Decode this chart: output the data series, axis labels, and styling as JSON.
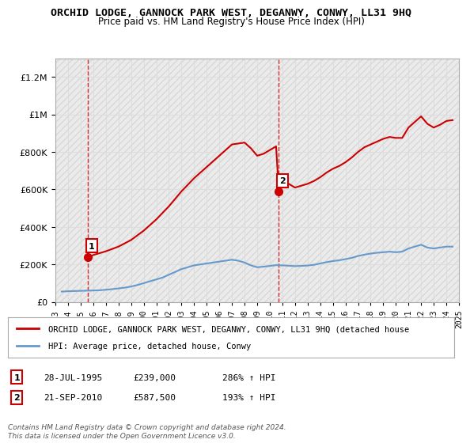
{
  "title": "ORCHID LODGE, GANNOCK PARK WEST, DEGANWY, CONWY, LL31 9HQ",
  "subtitle": "Price paid vs. HM Land Registry's House Price Index (HPI)",
  "ylim": [
    0,
    1300000
  ],
  "yticks": [
    0,
    200000,
    400000,
    600000,
    800000,
    1000000,
    1200000
  ],
  "ytick_labels": [
    "£0",
    "£200K",
    "£400K",
    "£600K",
    "£800K",
    "£1M",
    "£1.2M"
  ],
  "xmin_year": 1993,
  "xmax_year": 2025,
  "xtick_years": [
    1993,
    1994,
    1995,
    1996,
    1997,
    1998,
    1999,
    2000,
    2001,
    2002,
    2003,
    2004,
    2005,
    2006,
    2007,
    2008,
    2009,
    2010,
    2011,
    2012,
    2013,
    2014,
    2015,
    2016,
    2017,
    2018,
    2019,
    2020,
    2021,
    2022,
    2023,
    2024,
    2025
  ],
  "sale1_year": 1995.57,
  "sale1_price": 239000,
  "sale2_year": 2010.72,
  "sale2_price": 587500,
  "sale1_label": "1",
  "sale2_label": "2",
  "red_line_color": "#cc0000",
  "blue_line_color": "#6699cc",
  "sale_dot_color": "#cc0000",
  "vline_color": "#cc0000",
  "grid_color": "#dddddd",
  "hatch_color": "#e8e8e8",
  "legend_label_red": "ORCHID LODGE, GANNOCK PARK WEST, DEGANWY, CONWY, LL31 9HQ (detached house",
  "legend_label_blue": "HPI: Average price, detached house, Conwy",
  "table_row1": [
    "1",
    "28-JUL-1995",
    "£239,000",
    "286% ↑ HPI"
  ],
  "table_row2": [
    "2",
    "21-SEP-2010",
    "£587,500",
    "193% ↑ HPI"
  ],
  "footnote": "Contains HM Land Registry data © Crown copyright and database right 2024.\nThis data is licensed under the Open Government Licence v3.0.",
  "background_color": "#ffffff",
  "plot_bg_color": "#f5f5f5",
  "hpi_blue_data_x": [
    1993.5,
    1994,
    1994.5,
    1995,
    1995.5,
    1996,
    1996.5,
    1997,
    1997.5,
    1998,
    1998.5,
    1999,
    1999.5,
    2000,
    2000.5,
    2001,
    2001.5,
    2002,
    2002.5,
    2003,
    2003.5,
    2004,
    2004.5,
    2005,
    2005.5,
    2006,
    2006.5,
    2007,
    2007.5,
    2008,
    2008.5,
    2009,
    2009.5,
    2010,
    2010.5,
    2011,
    2011.5,
    2012,
    2012.5,
    2013,
    2013.5,
    2014,
    2014.5,
    2015,
    2015.5,
    2016,
    2016.5,
    2017,
    2017.5,
    2018,
    2018.5,
    2019,
    2019.5,
    2020,
    2020.5,
    2021,
    2021.5,
    2022,
    2022.5,
    2023,
    2023.5,
    2024,
    2024.5
  ],
  "hpi_blue_data_y": [
    55000,
    57000,
    58000,
    59000,
    60000,
    61000,
    62000,
    65000,
    68000,
    72000,
    76000,
    82000,
    90000,
    100000,
    110000,
    120000,
    130000,
    145000,
    160000,
    175000,
    185000,
    195000,
    200000,
    205000,
    210000,
    215000,
    220000,
    225000,
    220000,
    210000,
    195000,
    185000,
    188000,
    192000,
    196000,
    195000,
    193000,
    191000,
    192000,
    194000,
    198000,
    205000,
    212000,
    218000,
    222000,
    228000,
    235000,
    245000,
    252000,
    258000,
    262000,
    265000,
    268000,
    265000,
    268000,
    285000,
    295000,
    305000,
    290000,
    285000,
    290000,
    295000,
    295000
  ],
  "red_line_data_x": [
    1995.57,
    1996,
    1997,
    1998,
    1999,
    2000,
    2001,
    2002,
    2003,
    2004,
    2005,
    2006,
    2007,
    2008,
    2008.5,
    2009,
    2009.5,
    2010,
    2010.5,
    2010.72,
    2011,
    2011.5,
    2012,
    2012.5,
    2013,
    2013.5,
    2014,
    2014.5,
    2015,
    2015.5,
    2016,
    2016.5,
    2017,
    2017.5,
    2018,
    2018.5,
    2019,
    2019.5,
    2020,
    2020.5,
    2021,
    2021.5,
    2022,
    2022.5,
    2023,
    2023.5,
    2024,
    2024.5
  ],
  "red_line_data_y": [
    239000,
    250000,
    270000,
    295000,
    330000,
    380000,
    440000,
    510000,
    590000,
    660000,
    720000,
    780000,
    840000,
    850000,
    820000,
    780000,
    790000,
    810000,
    830000,
    587500,
    650000,
    630000,
    610000,
    620000,
    630000,
    645000,
    665000,
    690000,
    710000,
    725000,
    745000,
    770000,
    800000,
    825000,
    840000,
    855000,
    870000,
    880000,
    875000,
    875000,
    930000,
    960000,
    990000,
    950000,
    930000,
    945000,
    965000,
    970000
  ]
}
